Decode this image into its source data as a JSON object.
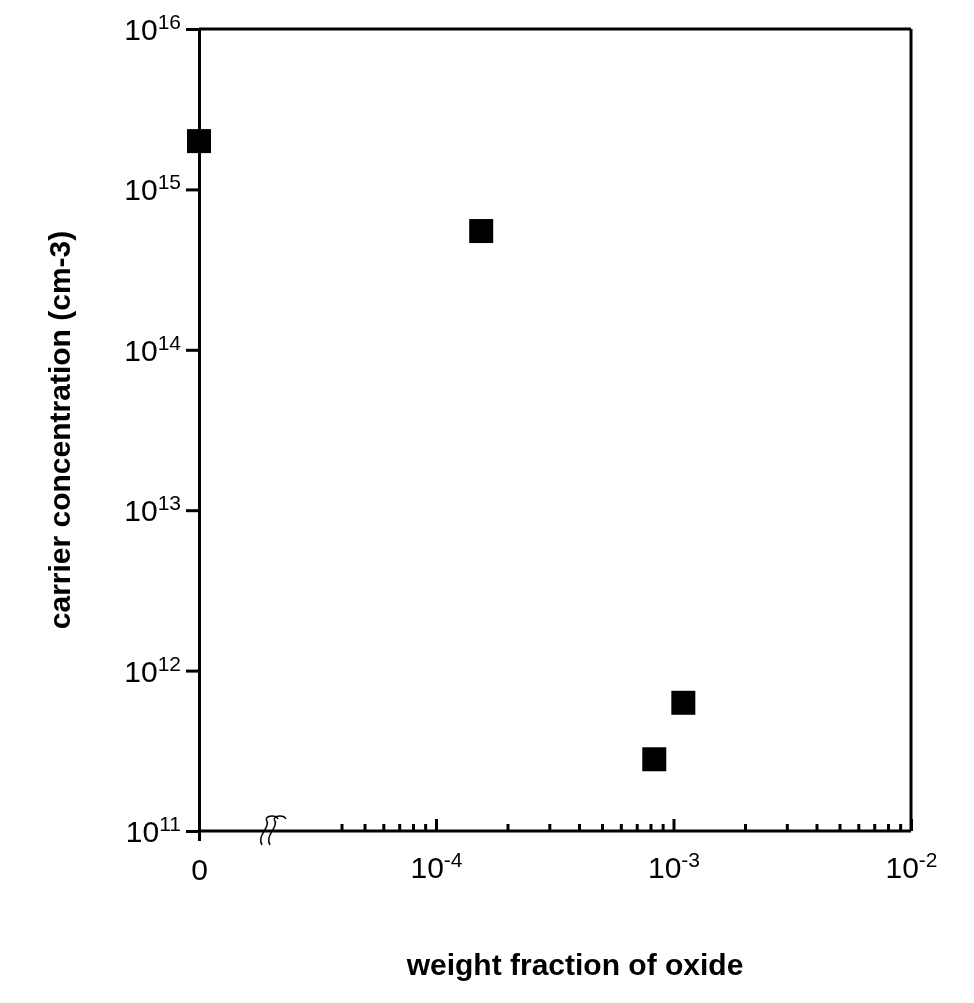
{
  "chart_data": [
    {
      "type": "scatter",
      "ylabel": "carrier concentration (cm-3)",
      "categories": [
        "0"
      ],
      "values": [
        2000000000000000.0
      ],
      "color": "#000000",
      "marker": "square",
      "log": "y",
      "ylim": [
        100000000000.0,
        1e+16
      ],
      "yticks": [
        {
          "value": 100000000000.0,
          "label": "10$^{11}$"
        },
        {
          "value": 1000000000000.0,
          "label": "10$^{12}$"
        },
        {
          "value": 10000000000000.0,
          "label": "10$^{13}$"
        },
        {
          "value": 100000000000000.0,
          "label": "10$^{14}$"
        },
        {
          "value": 1000000000000000.0,
          "label": "10$^{15}$"
        },
        {
          "value": 1e+16,
          "label": "10$^{16}$"
        }
      ]
    },
    {
      "type": "scatter",
      "xlabel": "weight fraction of oxide",
      "x": [
        0.000155,
        0.00083,
        0.0011
      ],
      "values": [
        550000000000000.0,
        280000000000.0,
        630000000000.0
      ],
      "color": "#000000",
      "marker": "square",
      "log": "xy",
      "tick_labels": "x",
      "ylim": [
        100000000000.0,
        1e+16
      ],
      "xlim": [
        2e-05,
        0.01
      ],
      "xticks": [
        {
          "value": 4e-05,
          "label": null
        },
        {
          "value": 5e-05,
          "label": null
        },
        {
          "value": 6e-05,
          "label": null
        },
        {
          "value": 7e-05,
          "label": null
        },
        {
          "value": 8e-05,
          "label": null
        },
        {
          "value": 9e-05,
          "label": null
        },
        {
          "value": 0.0001,
          "label": "10$^{-4}$"
        },
        {
          "value": 0.0002,
          "label": null
        },
        {
          "value": 0.0003,
          "label": null
        },
        {
          "value": 0.0004,
          "label": null
        },
        {
          "value": 0.0005,
          "label": null
        },
        {
          "value": 0.0006,
          "label": null
        },
        {
          "value": 0.0007,
          "label": null
        },
        {
          "value": 0.0008,
          "label": null
        },
        {
          "value": 0.0009,
          "label": null
        },
        {
          "value": 0.001,
          "label": "10$^{-3}$"
        },
        {
          "value": 0.002,
          "label": null
        },
        {
          "value": 0.003,
          "label": null
        },
        {
          "value": 0.004,
          "label": null
        },
        {
          "value": 0.005,
          "label": null
        },
        {
          "value": 0.006,
          "label": null
        },
        {
          "value": 0.007,
          "label": null
        },
        {
          "value": 0.008,
          "label": null
        },
        {
          "value": 0.009,
          "label": null
        },
        {
          "value": 0.01,
          "label": "10$^{-2}$"
        }
      ]
    }
  ]
}
